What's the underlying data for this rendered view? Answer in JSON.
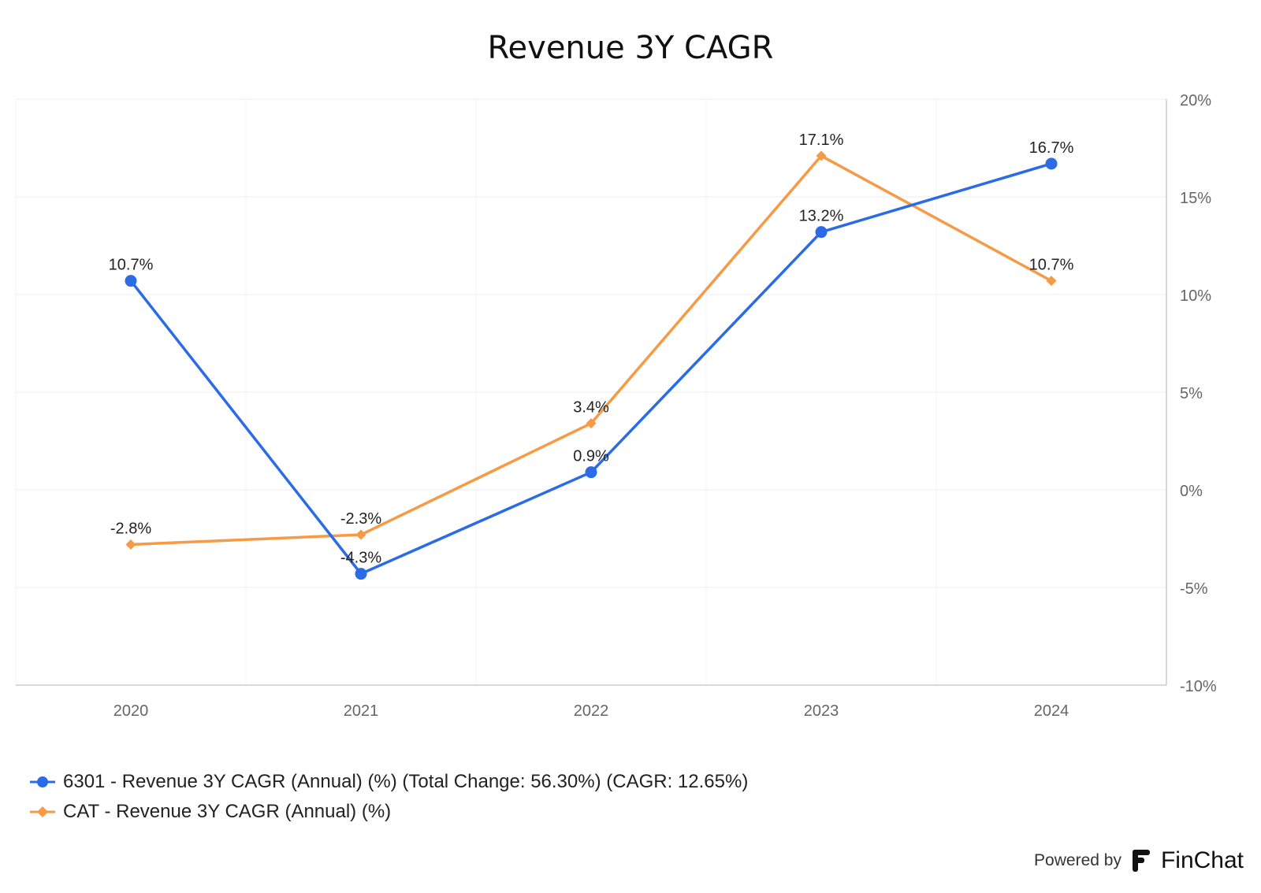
{
  "chart_data": {
    "type": "line",
    "title": "Revenue 3Y CAGR",
    "categories": [
      "2020",
      "2021",
      "2022",
      "2023",
      "2024"
    ],
    "y_ticks": [
      20,
      15,
      10,
      5,
      0,
      -5,
      -10
    ],
    "y_tick_labels": [
      "20%",
      "15%",
      "10%",
      "5%",
      "0%",
      "-5%",
      "-10%"
    ],
    "ylim": [
      -10,
      20
    ],
    "y_axis_side": "right",
    "grid": true,
    "legend_position": "bottom-left",
    "series": [
      {
        "name": "6301 - Revenue 3Y CAGR (Annual) (%) (Total Change: 56.30%) (CAGR: 12.65%)",
        "values": [
          10.7,
          -4.3,
          0.9,
          13.2,
          16.7
        ],
        "labels": [
          "10.7%",
          "-4.3%",
          "0.9%",
          "13.2%",
          "16.7%"
        ],
        "color": "#2b6be6",
        "marker": "circle"
      },
      {
        "name": "CAT - Revenue 3Y CAGR (Annual) (%)",
        "values": [
          -2.8,
          -2.3,
          3.4,
          17.1,
          10.7
        ],
        "labels": [
          "-2.8%",
          "-2.3%",
          "3.4%",
          "17.1%",
          "10.7%"
        ],
        "color": "#f79a45",
        "marker": "diamond"
      }
    ]
  },
  "footer": {
    "powered_by": "Powered by",
    "brand": "FinChat",
    "brand_icon": "finchat-logo-icon"
  }
}
